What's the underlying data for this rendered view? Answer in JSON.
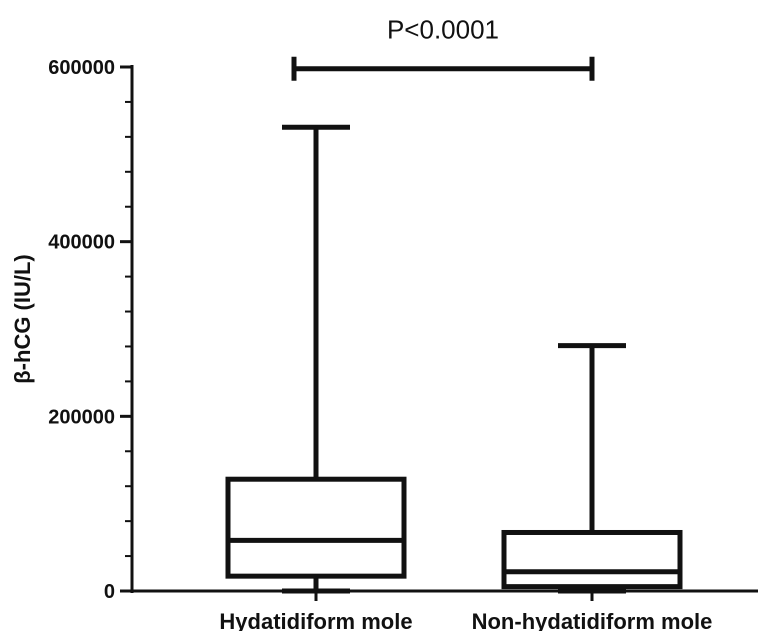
{
  "chart_data": {
    "type": "box",
    "title": "",
    "xlabel": "",
    "ylabel": "β-hCG (IU/L)",
    "ylim": [
      0,
      600000
    ],
    "yticks": [
      0,
      200000,
      400000,
      600000
    ],
    "ytick_labels": [
      "0",
      "200000",
      "400000",
      "600000"
    ],
    "categories": [
      "Hydatidiform mole",
      "Non-hydatidiform mole"
    ],
    "series": [
      {
        "category": "Hydatidiform mole",
        "min": 0,
        "q1": 17000,
        "median": 58000,
        "q3": 128000,
        "max": 531000
      },
      {
        "category": "Non-hydatidiform mole",
        "min": 0,
        "q1": 5000,
        "median": 22000,
        "q3": 67000,
        "max": 281000
      }
    ],
    "annotation": {
      "text": "P<0.0001",
      "from": 0,
      "to": 1,
      "y": 598000
    }
  }
}
